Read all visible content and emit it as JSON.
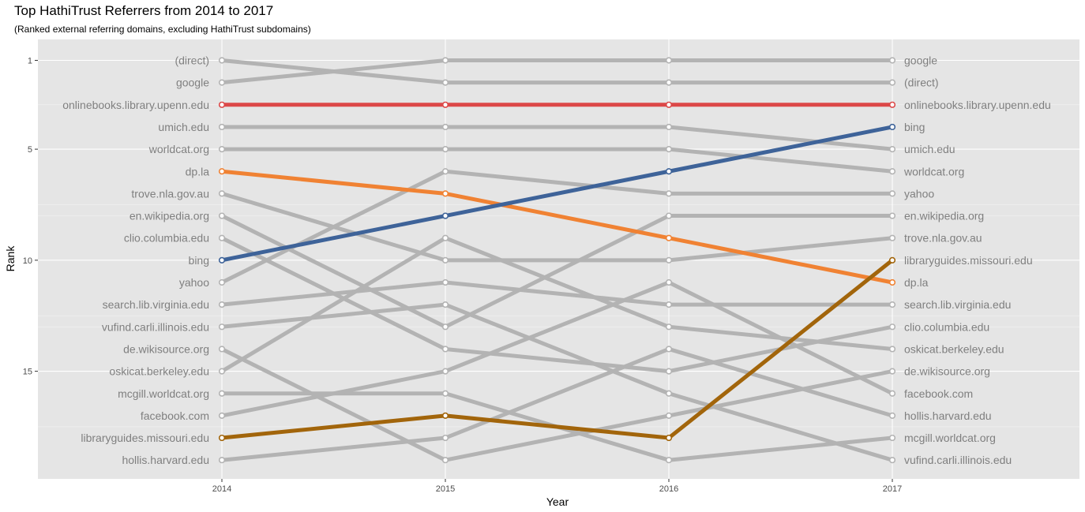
{
  "chart_data": {
    "type": "line",
    "title": "Top HathiTrust Referrers from 2014 to 2017",
    "subtitle": "(Ranked external referring domains, excluding HathiTrust subdomains)",
    "xlabel": "Year",
    "ylabel": "Rank",
    "x": [
      2014,
      2015,
      2016,
      2017
    ],
    "x_tick_labels": [
      "2014",
      "2015",
      "2016",
      "2017"
    ],
    "y_ticks": [
      1,
      5,
      10,
      15
    ],
    "y_tick_labels": [
      "1",
      "5",
      "10",
      "15"
    ],
    "ylim": [
      19.8,
      0.3
    ],
    "y_reversed": true,
    "grid": true,
    "background": "#e5e5e5",
    "default_color": "#b3b3b3",
    "series": [
      {
        "name": "(direct)",
        "values": [
          1,
          2,
          2,
          2
        ],
        "color": "#b3b3b3"
      },
      {
        "name": "google",
        "values": [
          2,
          1,
          1,
          1
        ],
        "color": "#b3b3b3"
      },
      {
        "name": "onlinebooks.library.upenn.edu",
        "values": [
          3,
          3,
          3,
          3
        ],
        "color": "#dc4848"
      },
      {
        "name": "umich.edu",
        "values": [
          4,
          4,
          4,
          5
        ],
        "color": "#b3b3b3"
      },
      {
        "name": "worldcat.org",
        "values": [
          5,
          5,
          5,
          6
        ],
        "color": "#b3b3b3"
      },
      {
        "name": "dp.la",
        "values": [
          6,
          7,
          9,
          11
        ],
        "color": "#f08233"
      },
      {
        "name": "trove.nla.gov.au",
        "values": [
          7,
          10,
          10,
          9
        ],
        "color": "#b3b3b3"
      },
      {
        "name": "en.wikipedia.org",
        "values": [
          8,
          13,
          8,
          8
        ],
        "color": "#b3b3b3"
      },
      {
        "name": "clio.columbia.edu",
        "values": [
          9,
          14,
          15,
          13
        ],
        "color": "#b3b3b3"
      },
      {
        "name": "bing",
        "values": [
          10,
          8,
          6,
          4
        ],
        "color": "#3e6399"
      },
      {
        "name": "yahoo",
        "values": [
          11,
          6,
          7,
          7
        ],
        "color": "#b3b3b3"
      },
      {
        "name": "search.lib.virginia.edu",
        "values": [
          12,
          11,
          12,
          12
        ],
        "color": "#b3b3b3"
      },
      {
        "name": "vufind.carli.illinois.edu",
        "values": [
          13,
          12,
          16,
          19
        ],
        "color": "#b3b3b3"
      },
      {
        "name": "de.wikisource.org",
        "values": [
          14,
          19,
          17,
          15
        ],
        "color": "#b3b3b3"
      },
      {
        "name": "oskicat.berkeley.edu",
        "values": [
          15,
          9,
          13,
          14
        ],
        "color": "#b3b3b3"
      },
      {
        "name": "mcgill.worldcat.org",
        "values": [
          16,
          16,
          19,
          18
        ],
        "color": "#b3b3b3"
      },
      {
        "name": "facebook.com",
        "values": [
          17,
          15,
          11,
          16
        ],
        "color": "#b3b3b3"
      },
      {
        "name": "libraryguides.missouri.edu",
        "values": [
          18,
          17,
          18,
          10
        ],
        "color": "#a2650b"
      },
      {
        "name": "hollis.harvard.edu",
        "values": [
          19,
          18,
          14,
          17
        ],
        "color": "#b3b3b3"
      }
    ],
    "left_labels": [
      "(direct)",
      "google",
      "onlinebooks.library.upenn.edu",
      "umich.edu",
      "worldcat.org",
      "dp.la",
      "trove.nla.gov.au",
      "en.wikipedia.org",
      "clio.columbia.edu",
      "bing",
      "yahoo",
      "search.lib.virginia.edu",
      "vufind.carli.illinois.edu",
      "de.wikisource.org",
      "oskicat.berkeley.edu",
      "mcgill.worldcat.org",
      "facebook.com",
      "libraryguides.missouri.edu",
      "hollis.harvard.edu"
    ],
    "right_labels": [
      "google",
      "(direct)",
      "onlinebooks.library.upenn.edu",
      "bing",
      "umich.edu",
      "worldcat.org",
      "yahoo",
      "en.wikipedia.org",
      "trove.nla.gov.au",
      "libraryguides.missouri.edu",
      "dp.la",
      "search.lib.virginia.edu",
      "clio.columbia.edu",
      "oskicat.berkeley.edu",
      "de.wikisource.org",
      "facebook.com",
      "hollis.harvard.edu",
      "mcgill.worldcat.org",
      "vufind.carli.illinois.edu"
    ]
  }
}
